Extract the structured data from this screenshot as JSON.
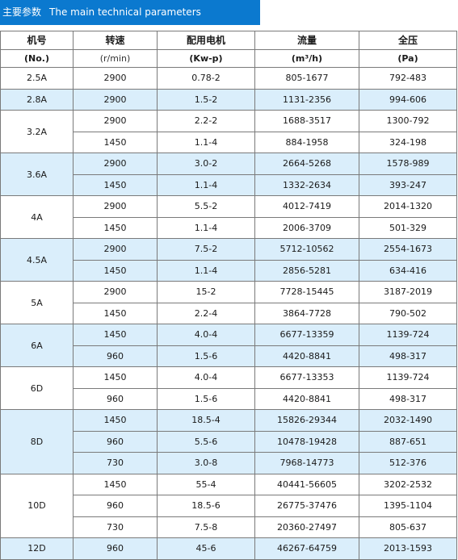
{
  "title": {
    "cn": "主要参数",
    "en": "The main technical parameters"
  },
  "headers": [
    {
      "name": "机号",
      "unit": "(No.)"
    },
    {
      "name": "转速",
      "unit": "(r/min)"
    },
    {
      "name": "配用电机",
      "unit": "(Kw-p)"
    },
    {
      "name": "流量",
      "unit": "(m³/h)"
    },
    {
      "name": "全压",
      "unit": "(Pa)"
    }
  ],
  "groups": [
    {
      "model": "2.5A",
      "shaded": false,
      "rows": [
        [
          "2900",
          "0.78-2",
          "805-1677",
          "792-483"
        ]
      ]
    },
    {
      "model": "2.8A",
      "shaded": true,
      "rows": [
        [
          "2900",
          "1.5-2",
          "1131-2356",
          "994-606"
        ]
      ]
    },
    {
      "model": "3.2A",
      "shaded": false,
      "rows": [
        [
          "2900",
          "2.2-2",
          "1688-3517",
          "1300-792"
        ],
        [
          "1450",
          "1.1-4",
          "884-1958",
          "324-198"
        ]
      ]
    },
    {
      "model": "3.6A",
      "shaded": true,
      "rows": [
        [
          "2900",
          "3.0-2",
          "2664-5268",
          "1578-989"
        ],
        [
          "1450",
          "1.1-4",
          "1332-2634",
          "393-247"
        ]
      ]
    },
    {
      "model": "4A",
      "shaded": false,
      "rows": [
        [
          "2900",
          "5.5-2",
          "4012-7419",
          "2014-1320"
        ],
        [
          "1450",
          "1.1-4",
          "2006-3709",
          "501-329"
        ]
      ]
    },
    {
      "model": "4.5A",
      "shaded": true,
      "rows": [
        [
          "2900",
          "7.5-2",
          "5712-10562",
          "2554-1673"
        ],
        [
          "1450",
          "1.1-4",
          "2856-5281",
          "634-416"
        ]
      ]
    },
    {
      "model": "5A",
      "shaded": false,
      "rows": [
        [
          "2900",
          "15-2",
          "7728-15445",
          "3187-2019"
        ],
        [
          "1450",
          "2.2-4",
          "3864-7728",
          "790-502"
        ]
      ]
    },
    {
      "model": "6A",
      "shaded": true,
      "rows": [
        [
          "1450",
          "4.0-4",
          "6677-13359",
          "1139-724"
        ],
        [
          "960",
          "1.5-6",
          "4420-8841",
          "498-317"
        ]
      ]
    },
    {
      "model": "6D",
      "shaded": false,
      "rows": [
        [
          "1450",
          "4.0-4",
          "6677-13353",
          "1139-724"
        ],
        [
          "960",
          "1.5-6",
          "4420-8841",
          "498-317"
        ]
      ]
    },
    {
      "model": "8D",
      "shaded": true,
      "rows": [
        [
          "1450",
          "18.5-4",
          "15826-29344",
          "2032-1490"
        ],
        [
          "960",
          "5.5-6",
          "10478-19428",
          "887-651"
        ],
        [
          "730",
          "3.0-8",
          "7968-14773",
          "512-376"
        ]
      ]
    },
    {
      "model": "10D",
      "shaded": false,
      "rows": [
        [
          "1450",
          "55-4",
          "40441-56605",
          "3202-2532"
        ],
        [
          "960",
          "18.5-6",
          "26775-37476",
          "1395-1104"
        ],
        [
          "730",
          "7.5-8",
          "20360-27497",
          "805-637"
        ]
      ]
    },
    {
      "model": "12D",
      "shaded": true,
      "rows": [
        [
          "960",
          "45-6",
          "46267-64759",
          "2013-1593"
        ]
      ]
    }
  ]
}
